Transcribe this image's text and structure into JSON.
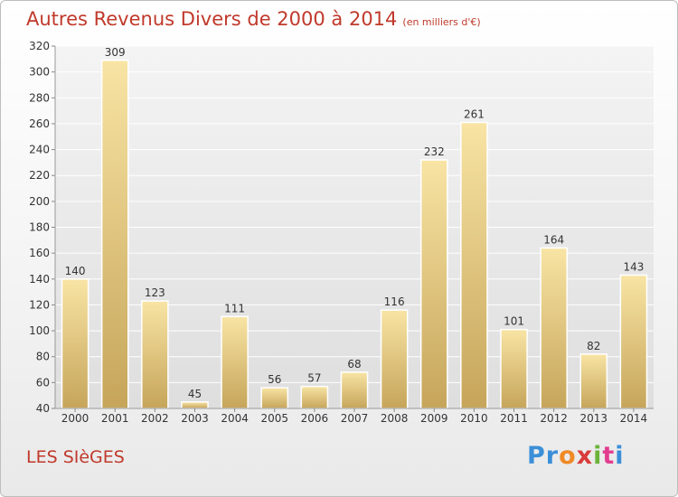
{
  "title": "Autres Revenus Divers de 2000 à 2014",
  "subtitle": "(en milliers d'€)",
  "town": "LES SIèGES",
  "logo": {
    "text": "Proxiti"
  },
  "colors": {
    "bar_light": "#f6df9b",
    "bar_dark": "#c9a85a",
    "title": "#c0392b"
  },
  "chart_data": {
    "type": "bar",
    "title": "Autres Revenus Divers de 2000 à 2014",
    "categories": [
      "2000",
      "2001",
      "2002",
      "2003",
      "2004",
      "2005",
      "2006",
      "2007",
      "2008",
      "2009",
      "2010",
      "2011",
      "2012",
      "2013",
      "2014"
    ],
    "values": [
      140,
      309,
      123,
      45,
      111,
      56,
      57,
      68,
      116,
      232,
      261,
      101,
      164,
      82,
      143
    ],
    "xlabel": "",
    "ylabel": "",
    "ylim": [
      40,
      320
    ],
    "yticks": [
      40,
      60,
      80,
      100,
      120,
      140,
      160,
      180,
      200,
      220,
      240,
      260,
      280,
      300,
      320
    ],
    "grid": true,
    "legend": "none"
  }
}
